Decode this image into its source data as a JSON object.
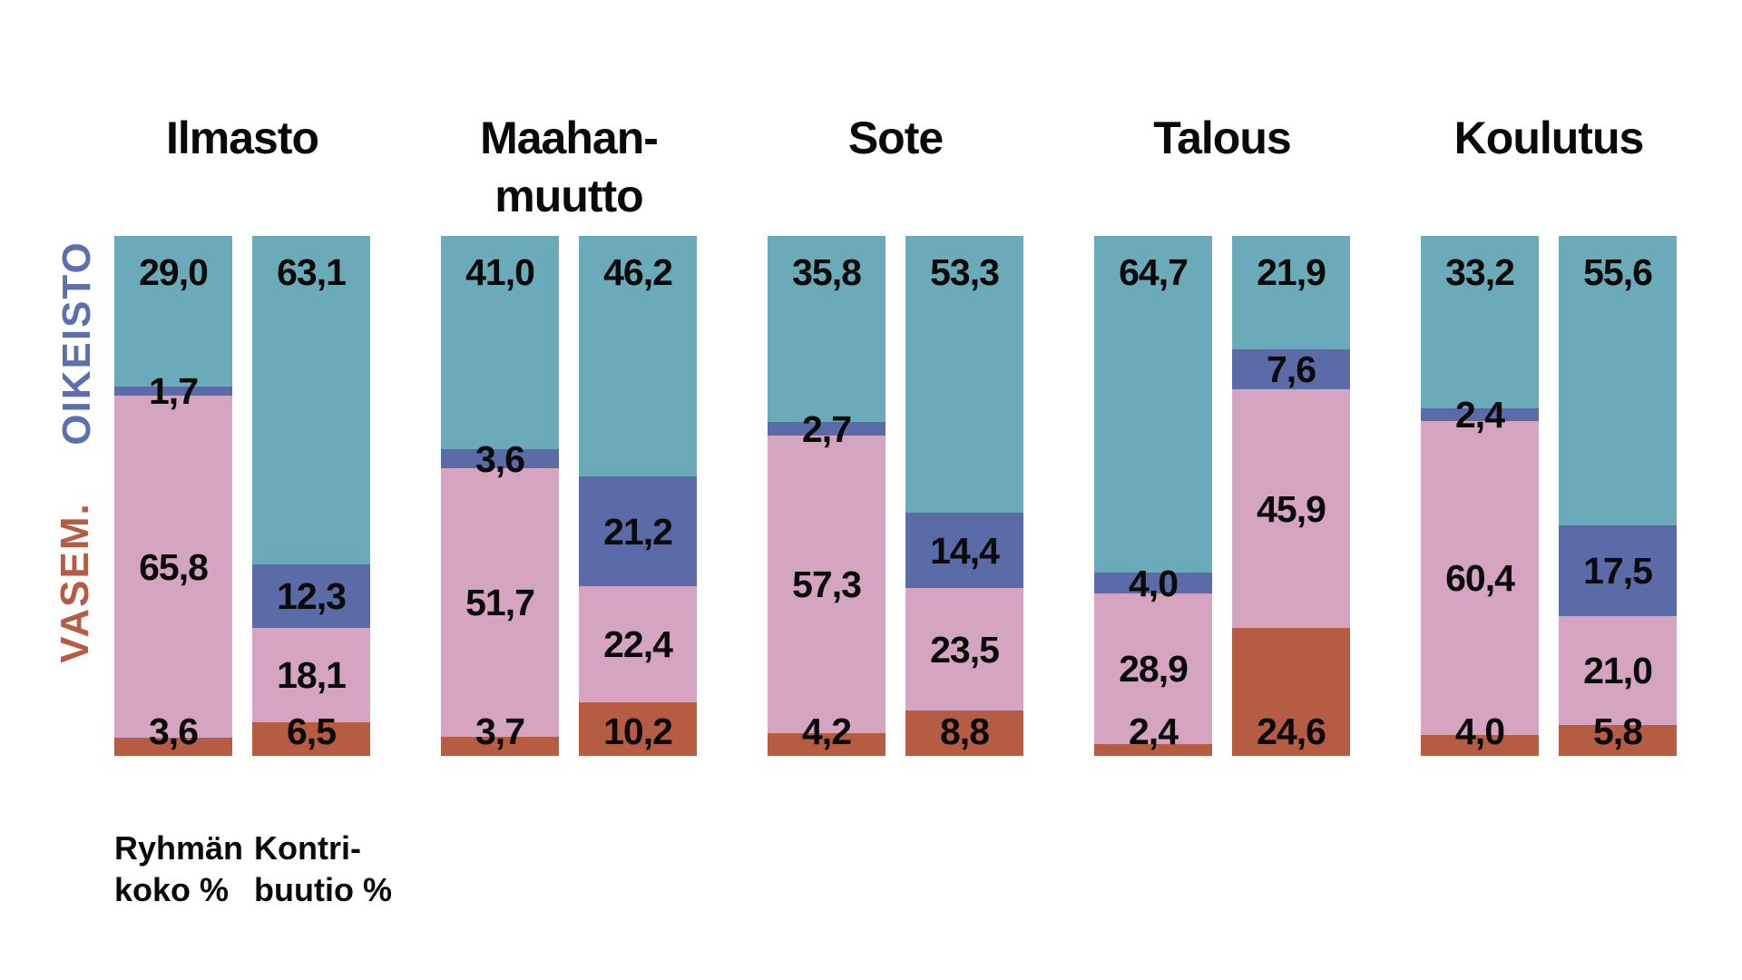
{
  "side_labels": {
    "oikeisto": {
      "text": "OIKEISTO",
      "color": "#5C70AF"
    },
    "vasem": {
      "text": "VASEM.",
      "color": "#B55C42"
    }
  },
  "footnotes": [
    {
      "line1": "Ryhmän",
      "line2": "koko %"
    },
    {
      "line1": "Kontri-",
      "line2": "buutio %"
    }
  ],
  "segment_colors": {
    "teal": "#6BABB9",
    "blue": "#5A6BA7",
    "pink": "#D4A4C0",
    "red": "#B55C42"
  },
  "value_label_color": "#0A0A0A",
  "chart_data": {
    "type": "bar",
    "variant": "100% stacked vertical bars, two bars per category",
    "unit": "%",
    "decimal_separator": ",",
    "bar_descriptions": [
      "Ryhmän koko %",
      "Kontribuutio %"
    ],
    "segment_order_top_to_bottom": [
      "teal",
      "blue",
      "pink",
      "red"
    ],
    "legend": {
      "oikeisto_color_meaning": "blue segments / OIKEISTO",
      "vasem_color_meaning": "red segments / VASEM."
    },
    "categories": [
      "Ilmasto",
      "Maahanmuutto",
      "Sote",
      "Talous",
      "Koulutus"
    ],
    "groups": [
      {
        "title_lines": [
          "Ilmasto"
        ],
        "bars": [
          {
            "label": "Ryhmän koko %",
            "segments": [
              {
                "key": "teal",
                "value": 29.0,
                "display": "29,0"
              },
              {
                "key": "blue",
                "value": 1.7,
                "display": "1,7"
              },
              {
                "key": "pink",
                "value": 65.8,
                "display": "65,8"
              },
              {
                "key": "red",
                "value": 3.6,
                "display": "3,6"
              }
            ]
          },
          {
            "label": "Kontribuutio %",
            "segments": [
              {
                "key": "teal",
                "value": 63.1,
                "display": "63,1"
              },
              {
                "key": "blue",
                "value": 12.3,
                "display": "12,3"
              },
              {
                "key": "pink",
                "value": 18.1,
                "display": "18,1"
              },
              {
                "key": "red",
                "value": 6.5,
                "display": "6,5"
              }
            ]
          }
        ]
      },
      {
        "title_lines": [
          "Maahan-",
          "muutto"
        ],
        "bars": [
          {
            "label": "Ryhmän koko %",
            "segments": [
              {
                "key": "teal",
                "value": 41.0,
                "display": "41,0"
              },
              {
                "key": "blue",
                "value": 3.6,
                "display": "3,6"
              },
              {
                "key": "pink",
                "value": 51.7,
                "display": "51,7"
              },
              {
                "key": "red",
                "value": 3.7,
                "display": "3,7"
              }
            ]
          },
          {
            "label": "Kontribuutio %",
            "segments": [
              {
                "key": "teal",
                "value": 46.2,
                "display": "46,2"
              },
              {
                "key": "blue",
                "value": 21.2,
                "display": "21,2"
              },
              {
                "key": "pink",
                "value": 22.4,
                "display": "22,4"
              },
              {
                "key": "red",
                "value": 10.2,
                "display": "10,2"
              }
            ]
          }
        ]
      },
      {
        "title_lines": [
          "Sote"
        ],
        "bars": [
          {
            "label": "Ryhmän koko %",
            "segments": [
              {
                "key": "teal",
                "value": 35.8,
                "display": "35,8"
              },
              {
                "key": "blue",
                "value": 2.7,
                "display": "2,7"
              },
              {
                "key": "pink",
                "value": 57.3,
                "display": "57,3"
              },
              {
                "key": "red",
                "value": 4.2,
                "display": "4,2"
              }
            ]
          },
          {
            "label": "Kontribuutio %",
            "segments": [
              {
                "key": "teal",
                "value": 53.3,
                "display": "53,3"
              },
              {
                "key": "blue",
                "value": 14.4,
                "display": "14,4"
              },
              {
                "key": "pink",
                "value": 23.5,
                "display": "23,5"
              },
              {
                "key": "red",
                "value": 8.8,
                "display": "8,8"
              }
            ]
          }
        ]
      },
      {
        "title_lines": [
          "Talous"
        ],
        "bars": [
          {
            "label": "Ryhmän koko %",
            "segments": [
              {
                "key": "teal",
                "value": 64.7,
                "display": "64,7"
              },
              {
                "key": "blue",
                "value": 4.0,
                "display": "4,0"
              },
              {
                "key": "pink",
                "value": 28.9,
                "display": "28,9"
              },
              {
                "key": "red",
                "value": 2.4,
                "display": "2,4"
              }
            ]
          },
          {
            "label": "Kontribuutio %",
            "segments": [
              {
                "key": "teal",
                "value": 21.9,
                "display": "21,9"
              },
              {
                "key": "blue",
                "value": 7.6,
                "display": "7,6"
              },
              {
                "key": "pink",
                "value": 45.9,
                "display": "45,9"
              },
              {
                "key": "red",
                "value": 24.6,
                "display": "24,6"
              }
            ]
          }
        ]
      },
      {
        "title_lines": [
          "Koulutus"
        ],
        "bars": [
          {
            "label": "Ryhmän koko %",
            "segments": [
              {
                "key": "teal",
                "value": 33.2,
                "display": "33,2"
              },
              {
                "key": "blue",
                "value": 2.4,
                "display": "2,4"
              },
              {
                "key": "pink",
                "value": 60.4,
                "display": "60,4"
              },
              {
                "key": "red",
                "value": 4.0,
                "display": "4,0"
              }
            ]
          },
          {
            "label": "Kontribuutio %",
            "segments": [
              {
                "key": "teal",
                "value": 55.6,
                "display": "55,6"
              },
              {
                "key": "blue",
                "value": 17.5,
                "display": "17,5"
              },
              {
                "key": "pink",
                "value": 21.0,
                "display": "21,0"
              },
              {
                "key": "red",
                "value": 5.8,
                "display": "5,8"
              }
            ]
          }
        ]
      }
    ]
  }
}
